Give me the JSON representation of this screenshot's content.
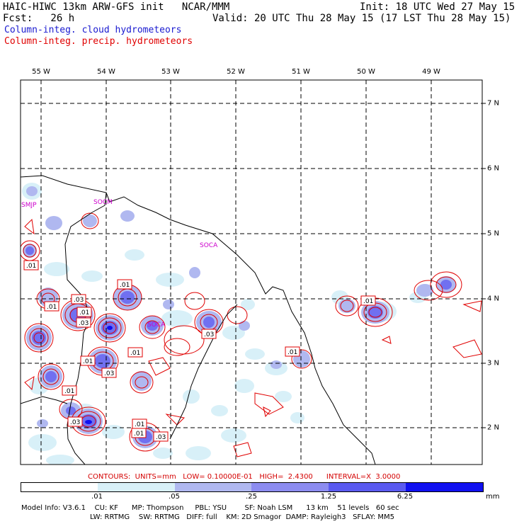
{
  "header": {
    "line1_left": "HAIC-HIWC 13km ARW-GFS init   NCAR/MMM",
    "line1_right": "Init: 18 UTC Wed 27 May 15",
    "line2_left": "Fcst:   26 h",
    "line2_right": "Valid: 20 UTC Thu 28 May 15 (17 LST Thu 28 May 15)",
    "cloud_label": "Column-integ. cloud hydrometeors",
    "precip_label": "Column-integ. precip. hydrometeors",
    "cloud_color": "#1a1ad0",
    "precip_color": "#e00000"
  },
  "map": {
    "longitude_labels": [
      "55 W",
      "54 W",
      "53 W",
      "52 W",
      "51 W",
      "50 W",
      "49 W"
    ],
    "latitude_labels": [
      "7 N",
      "6 N",
      "5 N",
      "4 N",
      "3 N",
      "2 N"
    ],
    "station_labels": [
      "SMJP",
      "SOCA",
      "SOCA",
      "SOCM"
    ],
    "contour_labels": [
      ".01",
      ".01",
      ".03",
      ".01",
      ".03",
      ".01",
      ".01",
      ".03",
      ".01",
      ".03",
      ".01",
      ".01",
      ".03",
      ".01",
      ".01",
      ".01",
      ".03"
    ],
    "station_color": "#cc00cc"
  },
  "contours": {
    "info": "CONTOURS:  UNITS=mm   LOW= 0.10000E-01   HIGH=  2.4300      INTERVAL=X  3.0000"
  },
  "colorbar": {
    "labels": [
      ".01",
      ".05",
      ".25",
      "1.25",
      "6.25"
    ],
    "unit": "mm",
    "colors": [
      "#ffffff",
      "#d8f0f8",
      "#b0b8f0",
      "#8c8cf0",
      "#5a5af0",
      "#1010f0"
    ]
  },
  "model_info": {
    "line1": "Model Info: V3.6.1    CU: KF      MP: Thompson     PBL: YSU        SF: Noah LSM      13 km    51 levels   60 sec",
    "line2": "LW: RRTMG    SW: RRTMG   DIFF: full    KM: 2D Smagor  DAMP: Rayleigh3   SFLAY: MM5"
  }
}
